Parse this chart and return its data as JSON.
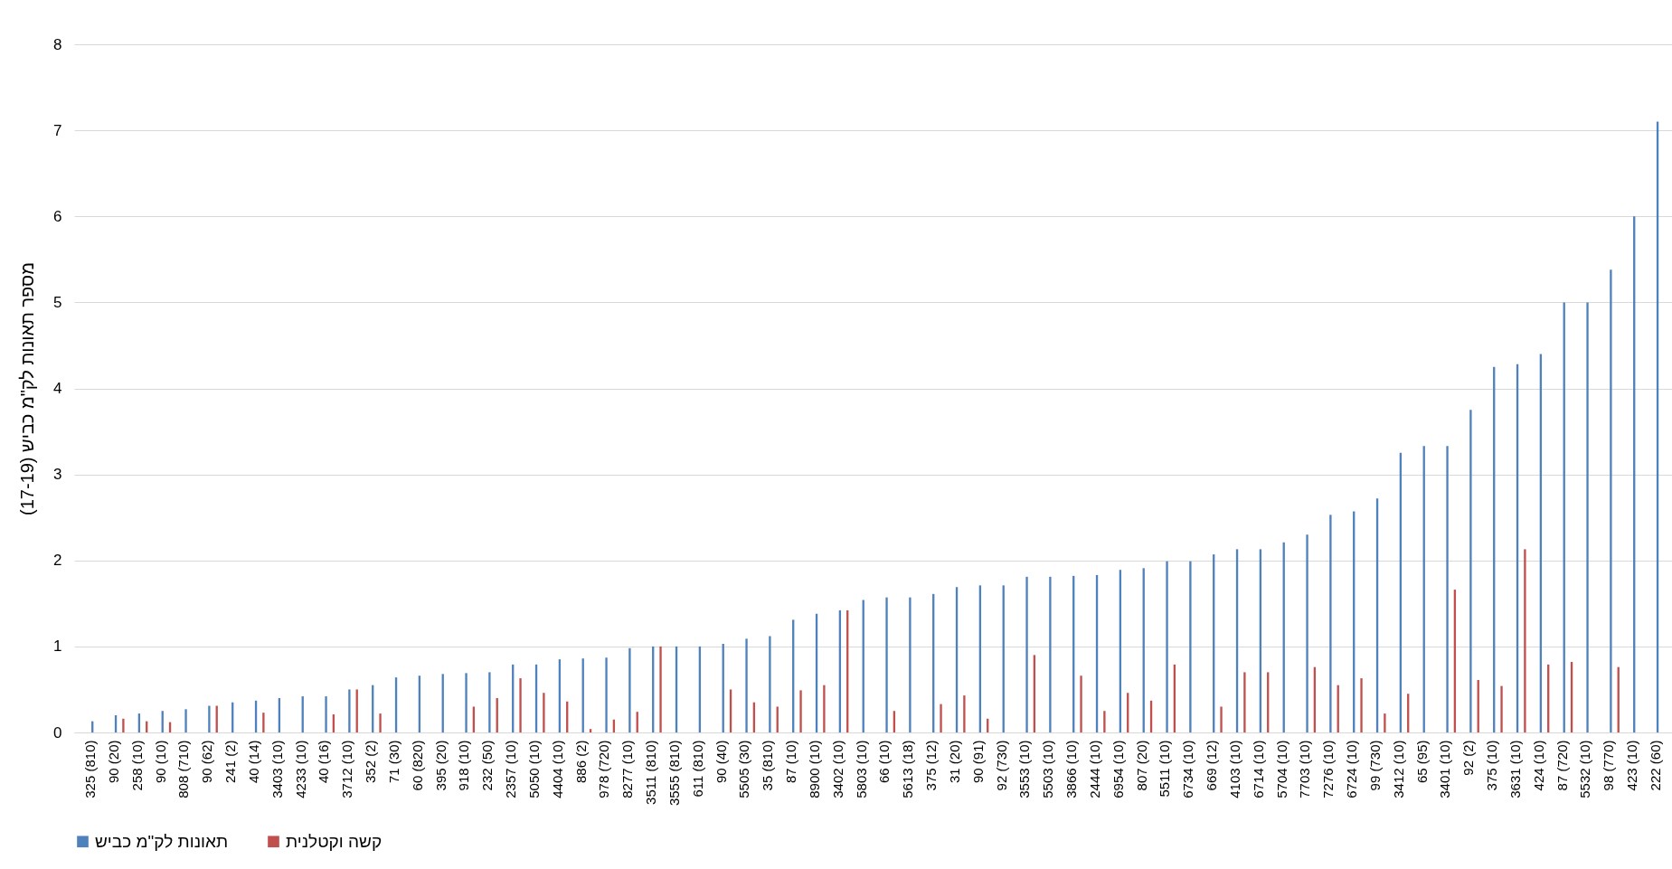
{
  "chart_data": {
    "type": "bar",
    "ylabel": "מספר תאונות לק\"מ כביש (17-19)",
    "categories": [
      "325 (810)",
      "90 (20)",
      "258 (10)",
      "90 (10)",
      "808 (710)",
      "90 (62)",
      "241 (2)",
      "40 (14)",
      "3403 (10)",
      "4233 (10)",
      "40 (16)",
      "3712 (10)",
      "352 (2)",
      "71 (30)",
      "60 (820)",
      "395 (20)",
      "918 (10)",
      "232 (50)",
      "2357 (10)",
      "5050 (10)",
      "4404 (10)",
      "886 (2)",
      "978 (720)",
      "8277 (10)",
      "3511 (810)",
      "3555 (810)",
      "611 (810)",
      "90 (40)",
      "5505 (30)",
      "35 (810)",
      "87 (10)",
      "8900 (10)",
      "3402 (10)",
      "5803 (10)",
      "66 (10)",
      "5613 (18)",
      "375 (12)",
      "31 (20)",
      "90 (91)",
      "92 (730)",
      "3553 (10)",
      "5503 (10)",
      "3866 (10)",
      "2444 (10)",
      "6954 (10)",
      "807 (20)",
      "5511 (10)",
      "6734 (10)",
      "669 (12)",
      "4103 (10)",
      "6714 (10)",
      "5704 (10)",
      "7703 (10)",
      "7276 (10)",
      "6724 (10)",
      "99 (730)",
      "3412 (10)",
      "65 (95)",
      "3401 (10)",
      "92 (2)",
      "375 (10)",
      "3631 (10)",
      "424 (10)",
      "87 (720)",
      "5532 (10)",
      "98 (770)",
      "423 (10)",
      "222 (60)"
    ],
    "series": [
      {
        "name": "תאונות לק\"מ כביש",
        "color": "#4f81bd",
        "values": [
          0.13,
          0.2,
          0.22,
          0.25,
          0.27,
          0.31,
          0.35,
          0.37,
          0.4,
          0.42,
          0.42,
          0.5,
          0.55,
          0.64,
          0.66,
          0.68,
          0.69,
          0.7,
          0.79,
          0.79,
          0.85,
          0.86,
          0.87,
          0.98,
          1,
          1,
          1,
          1.03,
          1.09,
          1.12,
          1.31,
          1.38,
          1.42,
          1.54,
          1.57,
          1.57,
          1.61,
          1.69,
          1.71,
          1.71,
          1.81,
          1.81,
          1.82,
          1.83,
          1.89,
          1.91,
          1.99,
          1.99,
          2.07,
          2.13,
          2.13,
          2.21,
          2.3,
          2.53,
          2.57,
          2.72,
          3.25,
          3.33,
          3.33,
          3.75,
          4.25,
          4.28,
          4.4,
          5,
          5,
          5.38,
          6,
          7.1
        ]
      },
      {
        "name": "קשה וקטלנית",
        "color": "#c0504d",
        "values": [
          null,
          0.16,
          0.13,
          0.12,
          null,
          0.31,
          null,
          0.23,
          null,
          null,
          0.21,
          0.5,
          0.22,
          null,
          null,
          null,
          0.3,
          0.4,
          0.63,
          0.46,
          0.36,
          0.04,
          0.15,
          0.24,
          1,
          null,
          null,
          0.5,
          0.35,
          0.3,
          0.49,
          0.55,
          1.42,
          null,
          0.25,
          null,
          0.33,
          0.43,
          0.16,
          null,
          0.9,
          null,
          0.66,
          0.25,
          0.46,
          0.37,
          0.79,
          null,
          0.3,
          0.7,
          0.7,
          null,
          0.76,
          0.55,
          0.63,
          0.22,
          0.45,
          null,
          1.66,
          0.61,
          0.54,
          2.13,
          0.79,
          0.82,
          null,
          0.76,
          null,
          null
        ]
      }
    ],
    "ylim": [
      0,
      8
    ],
    "yticks": [
      0,
      1,
      2,
      3,
      4,
      5,
      6,
      7,
      8
    ],
    "grid": "y",
    "legend": "bottom"
  }
}
